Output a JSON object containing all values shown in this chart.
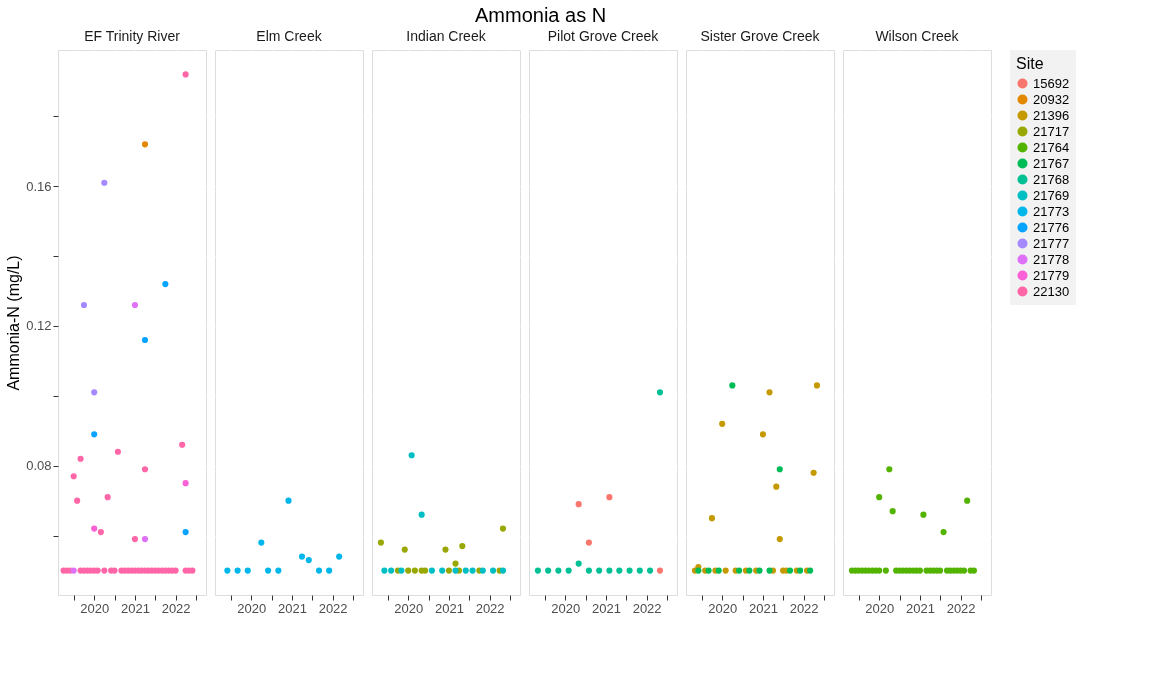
{
  "chart_data": [
    {
      "type": "scatter",
      "subtitle": "EF Trinity River",
      "ylabel": "Ammonia-N (mg/L)",
      "legend_title": "Site",
      "legend": "right",
      "grid": true,
      "marker": "circle",
      "xlim": [
        "2019-02-10",
        "2022-10-01"
      ],
      "xticks": [
        {
          "value": "2019-07-02",
          "label": null
        },
        {
          "value": "2020",
          "label": "2020"
        },
        {
          "value": "2020-07-02",
          "label": null
        },
        {
          "value": "2021",
          "label": "2021"
        },
        {
          "value": "2021-07-02",
          "label": null
        },
        {
          "value": "2022",
          "label": "2022"
        },
        {
          "value": "2022-07-02",
          "label": null
        }
      ],
      "ylim": [
        0.043,
        0.199
      ],
      "yticks": [
        {
          "value": 0.06,
          "label": null
        },
        0.08,
        {
          "value": 0.1,
          "label": null
        },
        0.12,
        {
          "value": 0.14,
          "label": null
        },
        0.16,
        {
          "value": 0.18,
          "label": null
        }
      ],
      "series": [
        {
          "name": "22130",
          "color": "#ff66a8",
          "x": [
            "2019-04",
            "2019-05",
            "2019-06",
            "2019-09",
            "2019-10",
            "2019-11",
            "2019-12",
            "2020-01",
            "2020-02",
            "2020-04",
            "2020-06",
            "2020-07",
            "2020-09",
            "2020-10",
            "2020-11",
            "2020-12",
            "2021-01",
            "2021-02",
            "2021-03",
            "2021-04",
            "2021-05",
            "2021-06",
            "2021-07",
            "2021-08",
            "2021-09",
            "2021-10",
            "2021-11",
            "2021-12",
            "2022-01",
            "2022-04",
            "2022-05",
            "2022-06",
            "2022-04",
            "2022-03",
            "2019-09",
            "2021-04",
            "2019-07",
            "2019-08",
            "2020-05",
            "2020-03",
            "2021-01",
            "2020-08"
          ],
          "values": [
            0.05,
            0.05,
            0.05,
            0.05,
            0.05,
            0.05,
            0.05,
            0.05,
            0.05,
            0.05,
            0.05,
            0.05,
            0.05,
            0.05,
            0.05,
            0.05,
            0.05,
            0.05,
            0.05,
            0.05,
            0.05,
            0.05,
            0.05,
            0.05,
            0.05,
            0.05,
            0.05,
            0.05,
            0.05,
            0.05,
            0.05,
            0.05,
            0.192,
            0.086,
            0.082,
            0.079,
            0.077,
            0.07,
            0.071,
            0.061,
            0.059,
            0.084
          ]
        },
        {
          "name": "20932",
          "color": "#e38900",
          "x": [
            "2021-04"
          ],
          "values": [
            0.172
          ]
        },
        {
          "name": "21776",
          "color": "#06a4ff",
          "x": [
            "2021-10",
            "2021-04",
            "2020-01",
            "2022-04"
          ],
          "values": [
            0.132,
            0.116,
            0.089,
            0.061
          ]
        },
        {
          "name": "21777",
          "color": "#a58aff",
          "x": [
            "2020-04",
            "2019-10",
            "2020-01"
          ],
          "values": [
            0.161,
            0.126,
            0.101
          ]
        },
        {
          "name": "21778",
          "color": "#df70f8",
          "x": [
            "2021-01",
            "2021-04",
            "2019-07"
          ],
          "values": [
            0.126,
            0.059,
            0.05
          ]
        },
        {
          "name": "21779",
          "color": "#fb61d7",
          "x": [
            "2020-01",
            "2022-04"
          ],
          "values": [
            0.062,
            0.075
          ]
        }
      ]
    },
    {
      "type": "scatter",
      "subtitle": "Elm Creek",
      "legend": "right",
      "grid": true,
      "marker": "circle",
      "tick_labels": "x",
      "xlim": [
        "2019-02-10",
        "2022-10-01"
      ],
      "xticks": [
        {
          "value": "2019-07-02",
          "label": null
        },
        {
          "value": "2020",
          "label": "2020"
        },
        {
          "value": "2020-07-02",
          "label": null
        },
        {
          "value": "2021",
          "label": "2021"
        },
        {
          "value": "2021-07-02",
          "label": null
        },
        {
          "value": "2022",
          "label": "2022"
        },
        {
          "value": "2022-07-02",
          "label": null
        }
      ],
      "ylim": [
        0.043,
        0.199
      ],
      "yticks": [
        {
          "value": 0.06,
          "label": null
        },
        0.08,
        {
          "value": 0.1,
          "label": null
        },
        0.12,
        {
          "value": 0.14,
          "label": null
        },
        0.16,
        {
          "value": 0.18,
          "label": null
        }
      ],
      "series": [
        {
          "name": "21773",
          "color": "#00b6eb",
          "x": [
            "2019-06",
            "2019-09",
            "2019-12",
            "2020-04",
            "2020-06",
            "2020-09",
            "2020-12",
            "2021-04",
            "2021-06",
            "2021-09",
            "2021-12",
            "2022-03"
          ],
          "values": [
            0.05,
            0.05,
            0.05,
            0.058,
            0.05,
            0.05,
            0.07,
            0.054,
            0.053,
            0.05,
            0.05,
            0.054
          ]
        }
      ]
    },
    {
      "type": "scatter",
      "subtitle": "Indian Creek",
      "legend": "right",
      "grid": true,
      "marker": "circle",
      "tick_labels": "x",
      "xlim": [
        "2019-02-10",
        "2022-10-01"
      ],
      "xticks": [
        {
          "value": "2019-07-02",
          "label": null
        },
        {
          "value": "2020",
          "label": "2020"
        },
        {
          "value": "2020-07-02",
          "label": null
        },
        {
          "value": "2021",
          "label": "2021"
        },
        {
          "value": "2021-07-02",
          "label": null
        },
        {
          "value": "2022",
          "label": "2022"
        },
        {
          "value": "2022-07-02",
          "label": null
        }
      ],
      "ylim": [
        0.043,
        0.199
      ],
      "yticks": [
        {
          "value": 0.06,
          "label": null
        },
        0.08,
        {
          "value": 0.1,
          "label": null
        },
        0.12,
        {
          "value": 0.14,
          "label": null
        },
        0.16,
        {
          "value": 0.18,
          "label": null
        }
      ],
      "series": [
        {
          "name": "21717",
          "color": "#99a800",
          "x": [
            "2019-05",
            "2019-12",
            "2020-12",
            "2021-03",
            "2021-05",
            "2022-05",
            "2019-10",
            "2020-01",
            "2020-03",
            "2020-05",
            "2020-06",
            "2021-01",
            "2021-04",
            "2021-10",
            "2022-04"
          ],
          "values": [
            0.058,
            0.056,
            0.056,
            0.052,
            0.057,
            0.062,
            0.05,
            0.05,
            0.05,
            0.05,
            0.05,
            0.05,
            0.05,
            0.05,
            0.05
          ]
        },
        {
          "name": "21769",
          "color": "#00bfc4",
          "x": [
            "2020-02",
            "2020-05",
            "2019-06",
            "2019-08",
            "2019-11",
            "2020-08",
            "2020-11",
            "2021-03",
            "2021-06",
            "2021-08",
            "2021-11",
            "2022-02",
            "2022-05"
          ],
          "values": [
            0.083,
            0.066,
            0.05,
            0.05,
            0.05,
            0.05,
            0.05,
            0.05,
            0.05,
            0.05,
            0.05,
            0.05,
            0.05
          ]
        }
      ]
    },
    {
      "type": "scatter",
      "title": "Ammonia as N",
      "subtitle": "Pilot Grove Creek",
      "legend": "right",
      "grid": true,
      "marker": "circle",
      "tick_labels": "x",
      "xlim": [
        "2019-02-10",
        "2022-10-01"
      ],
      "xticks": [
        {
          "value": "2019-07-02",
          "label": null
        },
        {
          "value": "2020",
          "label": "2020"
        },
        {
          "value": "2020-07-02",
          "label": null
        },
        {
          "value": "2021",
          "label": "2021"
        },
        {
          "value": "2021-07-02",
          "label": null
        },
        {
          "value": "2022",
          "label": "2022"
        },
        {
          "value": "2022-07-02",
          "label": null
        }
      ],
      "ylim": [
        0.043,
        0.199
      ],
      "yticks": [
        {
          "value": 0.06,
          "label": null
        },
        0.08,
        {
          "value": 0.1,
          "label": null
        },
        0.12,
        {
          "value": 0.14,
          "label": null
        },
        0.16,
        {
          "value": 0.18,
          "label": null
        }
      ],
      "series": [
        {
          "name": "21768",
          "color": "#00c094",
          "x": [
            "2022-05",
            "2020-05",
            "2019-05",
            "2019-08",
            "2019-11",
            "2020-02",
            "2020-08",
            "2020-11",
            "2021-02",
            "2021-05",
            "2021-08",
            "2021-11",
            "2022-02"
          ],
          "values": [
            0.101,
            0.052,
            0.05,
            0.05,
            0.05,
            0.05,
            0.05,
            0.05,
            0.05,
            0.05,
            0.05,
            0.05,
            0.05
          ]
        },
        {
          "name": "15692",
          "color": "#f8766d",
          "x": [
            "2020-05",
            "2021-02",
            "2020-08",
            "2022-05"
          ],
          "values": [
            0.069,
            0.071,
            0.058,
            0.05
          ]
        }
      ]
    },
    {
      "type": "scatter",
      "subtitle": "Sister Grove Creek",
      "legend": "right",
      "grid": true,
      "marker": "circle",
      "tick_labels": "x",
      "xlim": [
        "2019-02-10",
        "2022-10-01"
      ],
      "xticks": [
        {
          "value": "2019-07-02",
          "label": null
        },
        {
          "value": "2020",
          "label": "2020"
        },
        {
          "value": "2020-07-02",
          "label": null
        },
        {
          "value": "2021",
          "label": "2021"
        },
        {
          "value": "2021-07-02",
          "label": null
        },
        {
          "value": "2022",
          "label": "2022"
        },
        {
          "value": "2022-07-02",
          "label": null
        }
      ],
      "ylim": [
        0.043,
        0.199
      ],
      "yticks": [
        {
          "value": 0.06,
          "label": null
        },
        0.08,
        {
          "value": 0.1,
          "label": null
        },
        0.12,
        {
          "value": 0.14,
          "label": null
        },
        0.16,
        {
          "value": 0.18,
          "label": null
        }
      ],
      "series": [
        {
          "name": "21396",
          "color": "#c49a00",
          "x": [
            "2021-03",
            "2022-05",
            "2020-01",
            "2021-01",
            "2022-04",
            "2021-05",
            "2019-10",
            "2021-06",
            "2019-06",
            "2019-05",
            "2019-08",
            "2019-11",
            "2020-02",
            "2020-05",
            "2020-08",
            "2020-11",
            "2021-04",
            "2021-07",
            "2021-08",
            "2021-11",
            "2022-02"
          ],
          "values": [
            0.101,
            0.103,
            0.092,
            0.089,
            0.078,
            0.074,
            0.065,
            0.059,
            0.051,
            0.05,
            0.05,
            0.05,
            0.05,
            0.05,
            0.05,
            0.05,
            0.05,
            0.05,
            0.05,
            0.05,
            0.05
          ]
        },
        {
          "name": "21767",
          "color": "#00bc56",
          "x": [
            "2020-04",
            "2021-06",
            "2019-06",
            "2019-09",
            "2019-12",
            "2020-06",
            "2020-09",
            "2020-12",
            "2021-03",
            "2021-09",
            "2021-12",
            "2022-03"
          ],
          "values": [
            0.103,
            0.079,
            0.05,
            0.05,
            0.05,
            0.05,
            0.05,
            0.05,
            0.05,
            0.05,
            0.05,
            0.05
          ]
        }
      ]
    },
    {
      "type": "scatter",
      "subtitle": "Wilson Creek",
      "legend": "right",
      "grid": true,
      "marker": "circle",
      "tick_labels": "x",
      "xlim": [
        "2019-02-10",
        "2022-10-01"
      ],
      "xticks": [
        {
          "value": "2019-07-02",
          "label": null
        },
        {
          "value": "2020",
          "label": "2020"
        },
        {
          "value": "2020-07-02",
          "label": null
        },
        {
          "value": "2021",
          "label": "2021"
        },
        {
          "value": "2021-07-02",
          "label": null
        },
        {
          "value": "2022",
          "label": "2022"
        },
        {
          "value": "2022-07-02",
          "label": null
        }
      ],
      "ylim": [
        0.043,
        0.199
      ],
      "yticks": [
        {
          "value": 0.06,
          "label": null
        },
        0.08,
        {
          "value": 0.1,
          "label": null
        },
        0.12,
        {
          "value": 0.14,
          "label": null
        },
        0.16,
        {
          "value": 0.18,
          "label": null
        }
      ],
      "series": [
        {
          "name": "21764",
          "color": "#53b400",
          "x": [
            "2019-05",
            "2019-06",
            "2019-07",
            "2019-08",
            "2019-09",
            "2019-10",
            "2019-11",
            "2019-12",
            "2020-01",
            "2020-03",
            "2020-06",
            "2020-07",
            "2020-08",
            "2020-09",
            "2020-10",
            "2020-11",
            "2020-12",
            "2021-01",
            "2021-03",
            "2021-04",
            "2021-05",
            "2021-06",
            "2021-07",
            "2021-09",
            "2021-10",
            "2021-11",
            "2021-12",
            "2022-01",
            "2022-02",
            "2022-04",
            "2022-05",
            "2020-04",
            "2020-01",
            "2020-05",
            "2021-02",
            "2021-08",
            "2022-03"
          ],
          "values": [
            0.05,
            0.05,
            0.05,
            0.05,
            0.05,
            0.05,
            0.05,
            0.05,
            0.05,
            0.05,
            0.05,
            0.05,
            0.05,
            0.05,
            0.05,
            0.05,
            0.05,
            0.05,
            0.05,
            0.05,
            0.05,
            0.05,
            0.05,
            0.05,
            0.05,
            0.05,
            0.05,
            0.05,
            0.05,
            0.05,
            0.05,
            0.079,
            0.071,
            0.067,
            0.066,
            0.061,
            0.07
          ]
        }
      ]
    }
  ]
}
